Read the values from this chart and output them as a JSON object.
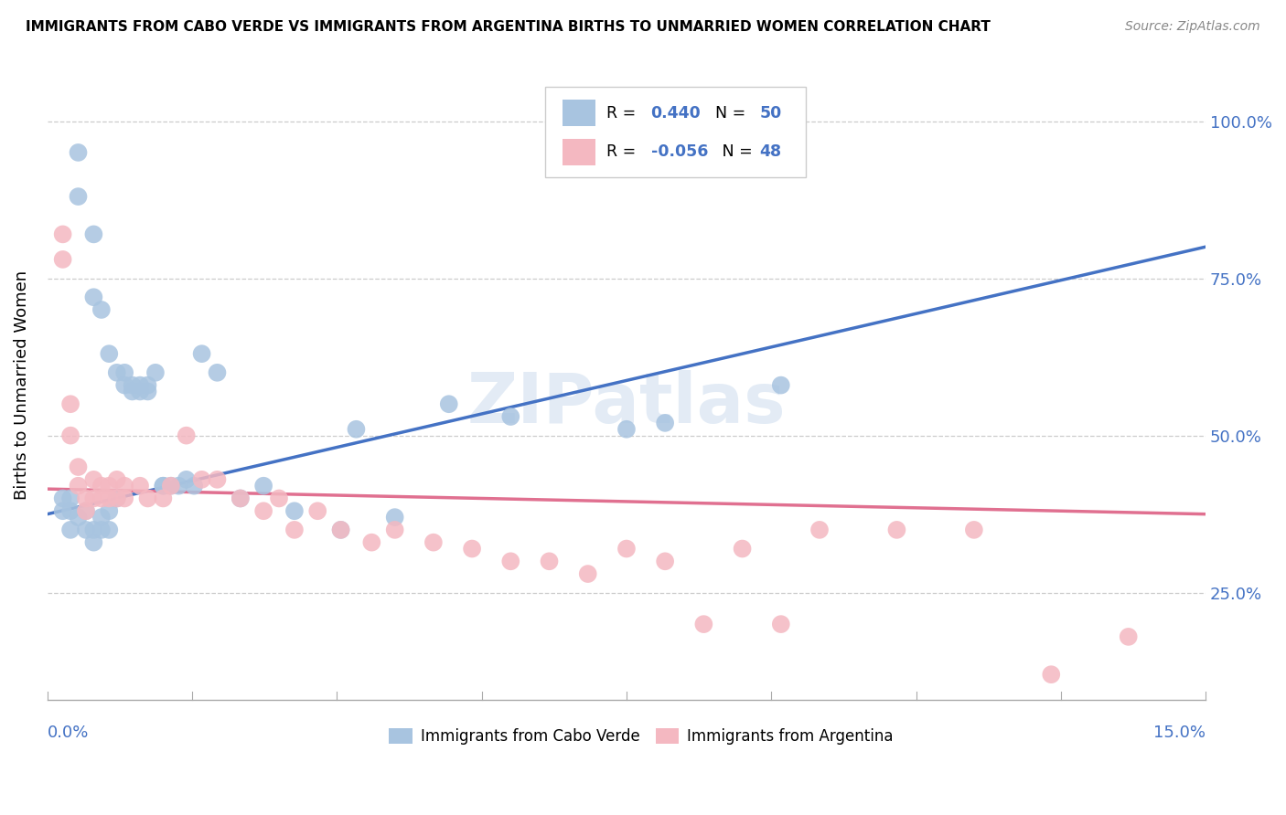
{
  "title": "IMMIGRANTS FROM CABO VERDE VS IMMIGRANTS FROM ARGENTINA BIRTHS TO UNMARRIED WOMEN CORRELATION CHART",
  "source": "Source: ZipAtlas.com",
  "ylabel": "Births to Unmarried Women",
  "yticks": [
    "25.0%",
    "50.0%",
    "75.0%",
    "100.0%"
  ],
  "ytick_vals": [
    0.25,
    0.5,
    0.75,
    1.0
  ],
  "xlim": [
    0.0,
    0.15
  ],
  "ylim": [
    0.08,
    1.08
  ],
  "cabo_verde_color": "#a8c4e0",
  "argentina_color": "#f4b8c1",
  "cabo_verde_line_color": "#4472c4",
  "argentina_line_color": "#e07090",
  "cabo_verde_x": [
    0.004,
    0.004,
    0.006,
    0.006,
    0.007,
    0.008,
    0.009,
    0.01,
    0.01,
    0.011,
    0.011,
    0.012,
    0.012,
    0.013,
    0.013,
    0.014,
    0.015,
    0.015,
    0.016,
    0.017,
    0.018,
    0.019,
    0.02,
    0.022,
    0.025,
    0.028,
    0.032,
    0.038,
    0.045,
    0.052,
    0.06,
    0.002,
    0.002,
    0.003,
    0.003,
    0.003,
    0.004,
    0.005,
    0.005,
    0.006,
    0.006,
    0.007,
    0.007,
    0.008,
    0.008,
    0.009,
    0.04,
    0.075,
    0.08,
    0.095
  ],
  "cabo_verde_y": [
    0.95,
    0.88,
    0.82,
    0.72,
    0.7,
    0.63,
    0.6,
    0.6,
    0.58,
    0.58,
    0.57,
    0.57,
    0.58,
    0.57,
    0.58,
    0.6,
    0.42,
    0.42,
    0.42,
    0.42,
    0.43,
    0.42,
    0.63,
    0.6,
    0.4,
    0.42,
    0.38,
    0.35,
    0.37,
    0.55,
    0.53,
    0.4,
    0.38,
    0.4,
    0.35,
    0.38,
    0.37,
    0.38,
    0.35,
    0.33,
    0.35,
    0.37,
    0.35,
    0.38,
    0.35,
    0.4,
    0.51,
    0.51,
    0.52,
    0.58
  ],
  "argentina_x": [
    0.002,
    0.002,
    0.003,
    0.003,
    0.004,
    0.004,
    0.005,
    0.005,
    0.006,
    0.006,
    0.007,
    0.007,
    0.008,
    0.008,
    0.009,
    0.009,
    0.01,
    0.01,
    0.012,
    0.013,
    0.015,
    0.016,
    0.018,
    0.02,
    0.022,
    0.025,
    0.028,
    0.03,
    0.032,
    0.035,
    0.038,
    0.042,
    0.045,
    0.05,
    0.055,
    0.06,
    0.065,
    0.07,
    0.075,
    0.08,
    0.085,
    0.09,
    0.095,
    0.1,
    0.11,
    0.12,
    0.13,
    0.14
  ],
  "argentina_y": [
    0.82,
    0.78,
    0.55,
    0.5,
    0.45,
    0.42,
    0.4,
    0.38,
    0.43,
    0.4,
    0.42,
    0.4,
    0.42,
    0.4,
    0.43,
    0.4,
    0.42,
    0.4,
    0.42,
    0.4,
    0.4,
    0.42,
    0.5,
    0.43,
    0.43,
    0.4,
    0.38,
    0.4,
    0.35,
    0.38,
    0.35,
    0.33,
    0.35,
    0.33,
    0.32,
    0.3,
    0.3,
    0.28,
    0.32,
    0.3,
    0.2,
    0.32,
    0.2,
    0.35,
    0.35,
    0.35,
    0.12,
    0.18
  ],
  "cv_line_x0": 0.0,
  "cv_line_y0": 0.375,
  "cv_line_x1": 0.15,
  "cv_line_y1": 0.8,
  "arg_line_x0": 0.0,
  "arg_line_y0": 0.415,
  "arg_line_x1": 0.15,
  "arg_line_y1": 0.375
}
